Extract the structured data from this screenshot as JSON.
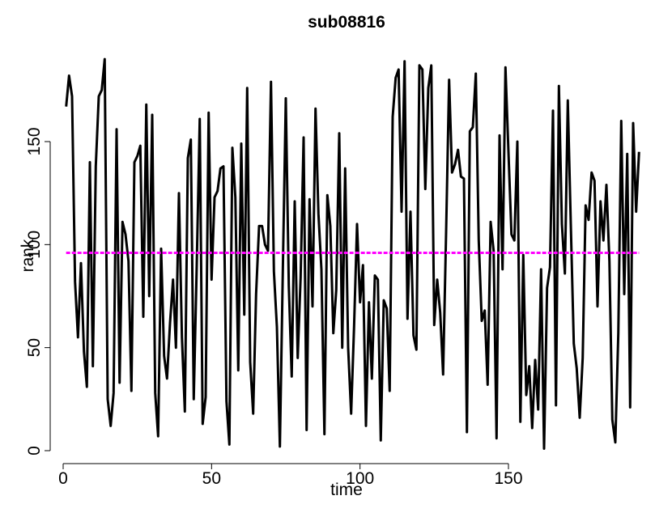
{
  "chart_data": {
    "type": "line",
    "title": "sub08816",
    "xlabel": "time",
    "ylabel": "rank",
    "xlim": [
      0,
      190
    ],
    "ylim": [
      0,
      190
    ],
    "x_ticks": [
      0,
      50,
      100,
      150
    ],
    "y_ticks": [
      0,
      50,
      100,
      150
    ],
    "series": [
      {
        "color": "#000000",
        "values": [
          167,
          182,
          172,
          82,
          55,
          91,
          48,
          31,
          140,
          41,
          138,
          172,
          175,
          190,
          25,
          12,
          28,
          156,
          33,
          111,
          105,
          92,
          29,
          140,
          143,
          148,
          65,
          168,
          75,
          163,
          28,
          7,
          98,
          46,
          35,
          62,
          83,
          50,
          125,
          55,
          19,
          142,
          151,
          25,
          90,
          161,
          13,
          26,
          164,
          83,
          123,
          126,
          137,
          138,
          24,
          3,
          147,
          123,
          39,
          149,
          66,
          176,
          43,
          18,
          76,
          109,
          109,
          100,
          97,
          179,
          87,
          60,
          2,
          87,
          171,
          80,
          36,
          121,
          45,
          84,
          152,
          10,
          122,
          70,
          166,
          115,
          88,
          8,
          124,
          109,
          57,
          78,
          154,
          50,
          137,
          50,
          18,
          60,
          110,
          72,
          90,
          12,
          72,
          35,
          85,
          83,
          5,
          73,
          69,
          29,
          162,
          181,
          185,
          116,
          189,
          64,
          116,
          56,
          49,
          187,
          185,
          127,
          176,
          187,
          61,
          83,
          67,
          37,
          106,
          180,
          135,
          139,
          146,
          133,
          132,
          9,
          155,
          157,
          183,
          102,
          63,
          68,
          32,
          111,
          97,
          6,
          153,
          88,
          186,
          145,
          105,
          102,
          150,
          14,
          95,
          27,
          41,
          11,
          44,
          20,
          88,
          1,
          79,
          89,
          165,
          22,
          177,
          110,
          86,
          170,
          110,
          52,
          40,
          16,
          45,
          119,
          112,
          135,
          131,
          70,
          121,
          102,
          129,
          92,
          15,
          4,
          57,
          160,
          76,
          144,
          21,
          159,
          116,
          145
        ]
      },
      {
        "color": "#ff00ff",
        "values": [
          96,
          96
        ]
      }
    ],
    "grid": false,
    "legend": "none"
  }
}
